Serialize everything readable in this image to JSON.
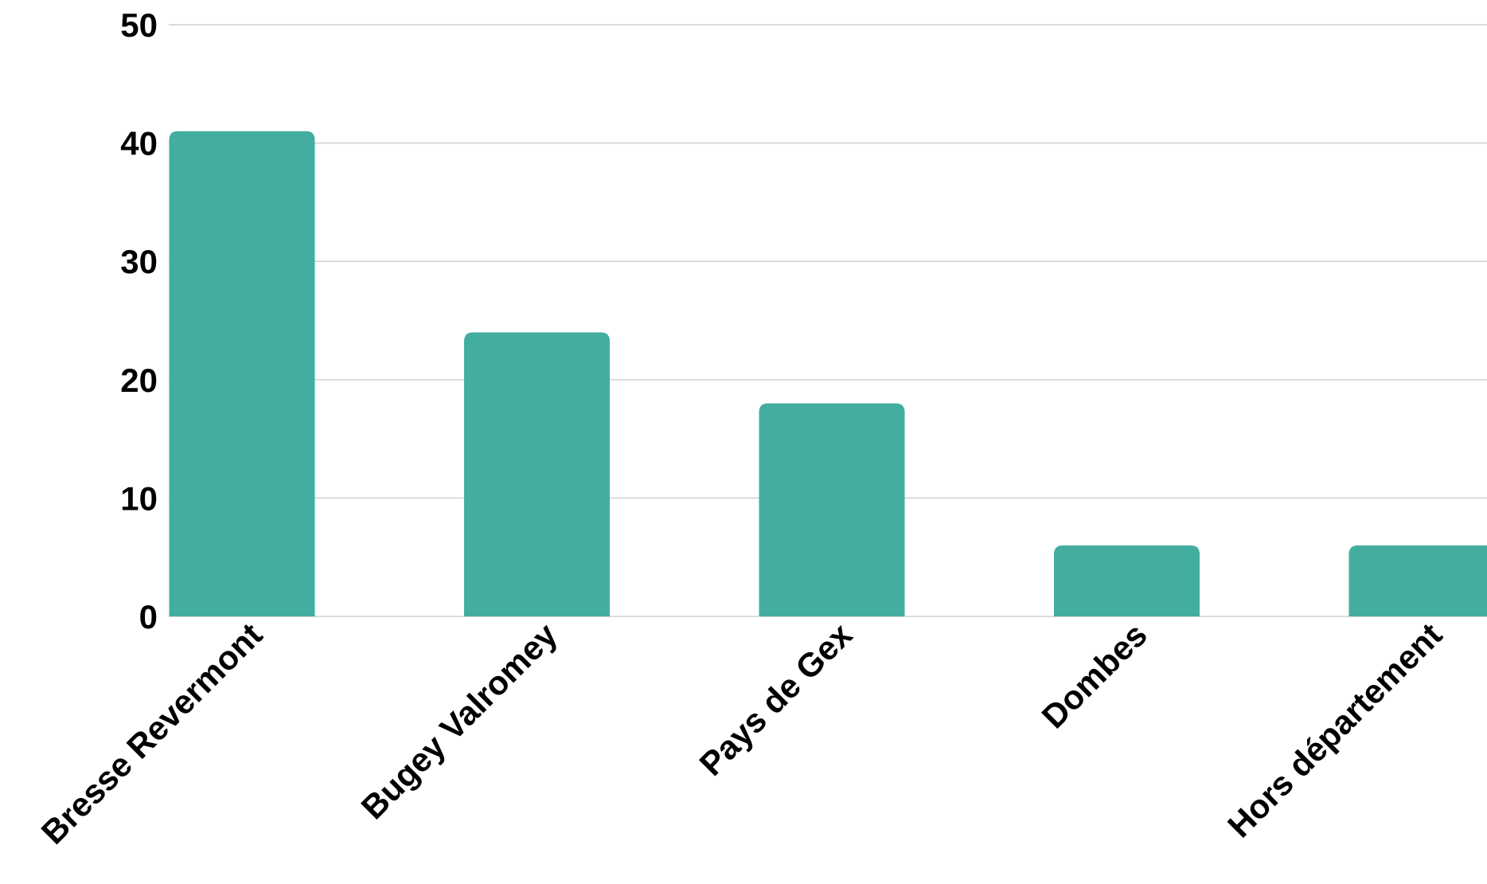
{
  "chart_data": {
    "type": "bar",
    "categories": [
      "Bresse Revermont",
      "Bugey Valromey",
      "Pays de Gex",
      "Dombes",
      "Hors département"
    ],
    "values": [
      41,
      24,
      18,
      6,
      6
    ],
    "ylim": [
      0,
      50
    ],
    "yticks": [
      0,
      10,
      20,
      30,
      40,
      50
    ],
    "grid": true,
    "legend": "none",
    "bar_color": "#43ae9f",
    "grid_color": "#d0d0d0"
  }
}
